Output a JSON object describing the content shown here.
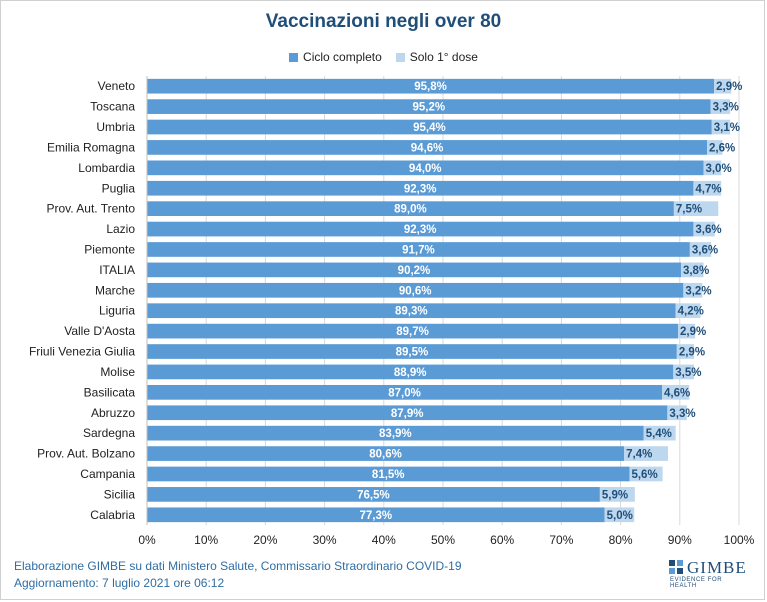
{
  "chart_data": {
    "type": "bar",
    "orientation": "horizontal",
    "stacked": true,
    "title": "Vaccinazioni negli over 80",
    "categories": [
      "Veneto",
      "Toscana",
      "Umbria",
      "Emilia Romagna",
      "Lombardia",
      "Puglia",
      "Prov. Aut. Trento",
      "Lazio",
      "Piemonte",
      "ITALIA",
      "Marche",
      "Liguria",
      "Valle D'Aosta",
      "Friuli Venezia Giulia",
      "Molise",
      "Basilicata",
      "Abruzzo",
      "Sardegna",
      "Prov. Aut. Bolzano",
      "Campania",
      "Sicilia",
      "Calabria"
    ],
    "series": [
      {
        "name": "Ciclo completo",
        "color": "#5b9bd5",
        "values": [
          95.8,
          95.2,
          95.4,
          94.6,
          94.0,
          92.3,
          89.0,
          92.3,
          91.7,
          90.2,
          90.6,
          89.3,
          89.7,
          89.5,
          88.9,
          87.0,
          87.9,
          83.9,
          80.6,
          81.5,
          76.5,
          77.3
        ],
        "labels": [
          "95,8%",
          "95,2%",
          "95,4%",
          "94,6%",
          "94,0%",
          "92,3%",
          "89,0%",
          "92,3%",
          "91,7%",
          "90,2%",
          "90,6%",
          "89,3%",
          "89,7%",
          "89,5%",
          "88,9%",
          "87,0%",
          "87,9%",
          "83,9%",
          "80,6%",
          "81,5%",
          "76,5%",
          "77,3%"
        ]
      },
      {
        "name": "Solo 1° dose",
        "color": "#bdd7ee",
        "values": [
          2.9,
          3.3,
          3.1,
          2.6,
          3.0,
          4.7,
          7.5,
          3.6,
          3.6,
          3.8,
          3.2,
          4.2,
          2.9,
          2.9,
          3.5,
          4.6,
          3.3,
          5.4,
          7.4,
          5.6,
          5.9,
          5.0
        ],
        "labels": [
          "2,9%",
          "3,3%",
          "3,1%",
          "2,6%",
          "3,0%",
          "4,7%",
          "7,5%",
          "3,6%",
          "3,6%",
          "3,8%",
          "3,2%",
          "4,2%",
          "2,9%",
          "2,9%",
          "3,5%",
          "4,6%",
          "3,3%",
          "5,4%",
          "7,4%",
          "5,6%",
          "5,9%",
          "5,0%"
        ]
      }
    ],
    "xlim": [
      0,
      100
    ],
    "xticks": [
      0,
      10,
      20,
      30,
      40,
      50,
      60,
      70,
      80,
      90,
      100
    ],
    "xtick_labels": [
      "0%",
      "10%",
      "20%",
      "30%",
      "40%",
      "50%",
      "60%",
      "70%",
      "80%",
      "90%",
      "100%"
    ],
    "grid": true,
    "legend_position": "top"
  },
  "footer": {
    "line1": "Elaborazione GIMBE su dati Ministero Salute, Commissario Straordinario COVID-19",
    "line2": "Aggiornamento: 7 luglio 2021 ore 06:12"
  },
  "logo": {
    "name": "GIMBE",
    "tagline": "EVIDENCE FOR HEALTH"
  },
  "colors": {
    "title": "#1f4e79",
    "footer": "#2e6da4",
    "complete_label": "#ffffff",
    "partial_label": "#1f4e79"
  }
}
